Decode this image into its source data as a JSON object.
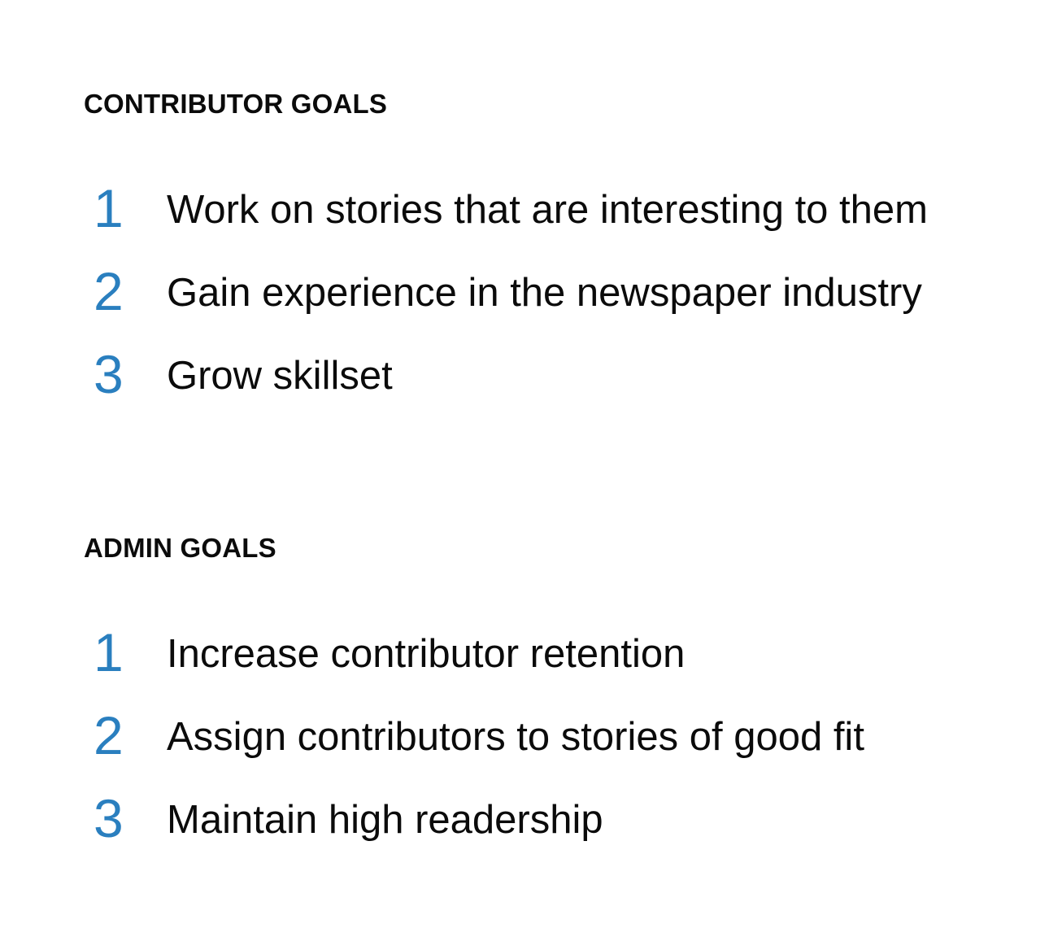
{
  "contributor": {
    "heading": "CONTRIBUTOR GOALS",
    "goals": [
      {
        "number": "1",
        "text": "Work on stories that are interesting to them"
      },
      {
        "number": "2",
        "text": "Gain experience in the newspaper industry"
      },
      {
        "number": "3",
        "text": "Grow skillset"
      }
    ]
  },
  "admin": {
    "heading": "ADMIN GOALS",
    "goals": [
      {
        "number": "1",
        "text": "Increase contributor retention"
      },
      {
        "number": "2",
        "text": "Assign contributors to stories of good fit"
      },
      {
        "number": "3",
        "text": "Maintain high readership"
      }
    ]
  },
  "colors": {
    "accent_number": "#2a7fbf",
    "text": "#0b0b0b",
    "background": "#ffffff"
  }
}
